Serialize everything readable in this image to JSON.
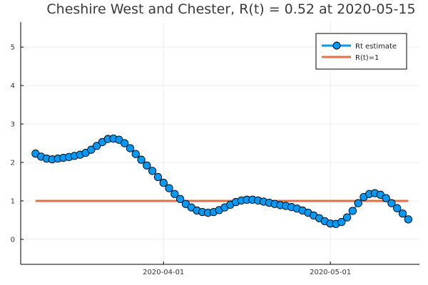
{
  "chart_data": {
    "type": "line",
    "title": "Cheshire West and Chester, R(t) = 0.52 at 2020-05-15",
    "xlabel": "",
    "ylabel": "",
    "x_start": "2020-03-09",
    "x_end": "2020-05-15",
    "x_ticks": [
      "2020-04-01",
      "2020-05-01"
    ],
    "y_ticks": [
      0,
      1,
      2,
      3,
      4,
      5
    ],
    "ylim": [
      -0.65,
      5.65
    ],
    "grid": true,
    "legend_position": "top-right",
    "series": [
      {
        "name": "Rt estimate",
        "color": "#009AFA",
        "marker": "circle",
        "x": [
          "2020-03-09",
          "2020-03-10",
          "2020-03-11",
          "2020-03-12",
          "2020-03-13",
          "2020-03-14",
          "2020-03-15",
          "2020-03-16",
          "2020-03-17",
          "2020-03-18",
          "2020-03-19",
          "2020-03-20",
          "2020-03-21",
          "2020-03-22",
          "2020-03-23",
          "2020-03-24",
          "2020-03-25",
          "2020-03-26",
          "2020-03-27",
          "2020-03-28",
          "2020-03-29",
          "2020-03-30",
          "2020-03-31",
          "2020-04-01",
          "2020-04-02",
          "2020-04-03",
          "2020-04-04",
          "2020-04-05",
          "2020-04-06",
          "2020-04-07",
          "2020-04-08",
          "2020-04-09",
          "2020-04-10",
          "2020-04-11",
          "2020-04-12",
          "2020-04-13",
          "2020-04-14",
          "2020-04-15",
          "2020-04-16",
          "2020-04-17",
          "2020-04-18",
          "2020-04-19",
          "2020-04-20",
          "2020-04-21",
          "2020-04-22",
          "2020-04-23",
          "2020-04-24",
          "2020-04-25",
          "2020-04-26",
          "2020-04-27",
          "2020-04-28",
          "2020-04-29",
          "2020-04-30",
          "2020-05-01",
          "2020-05-02",
          "2020-05-03",
          "2020-05-04",
          "2020-05-05",
          "2020-05-06",
          "2020-05-07",
          "2020-05-08",
          "2020-05-09",
          "2020-05-10",
          "2020-05-11",
          "2020-05-12",
          "2020-05-13",
          "2020-05-14",
          "2020-05-15"
        ],
        "values": [
          2.23,
          2.15,
          2.1,
          2.08,
          2.1,
          2.12,
          2.14,
          2.17,
          2.2,
          2.25,
          2.33,
          2.43,
          2.53,
          2.61,
          2.62,
          2.59,
          2.5,
          2.37,
          2.22,
          2.07,
          1.92,
          1.78,
          1.62,
          1.47,
          1.33,
          1.18,
          1.05,
          0.92,
          0.83,
          0.75,
          0.71,
          0.69,
          0.71,
          0.76,
          0.83,
          0.9,
          0.97,
          1.01,
          1.03,
          1.03,
          1.01,
          0.98,
          0.95,
          0.92,
          0.89,
          0.87,
          0.84,
          0.8,
          0.75,
          0.69,
          0.62,
          0.55,
          0.47,
          0.41,
          0.4,
          0.45,
          0.57,
          0.74,
          0.94,
          1.1,
          1.18,
          1.2,
          1.16,
          1.07,
          0.94,
          0.81,
          0.67,
          0.52
        ]
      },
      {
        "name": "R(t)=1",
        "color": "#E26F46",
        "marker": "none",
        "x": [
          "2020-03-09",
          "2020-05-15"
        ],
        "values": [
          1,
          1
        ]
      }
    ]
  }
}
